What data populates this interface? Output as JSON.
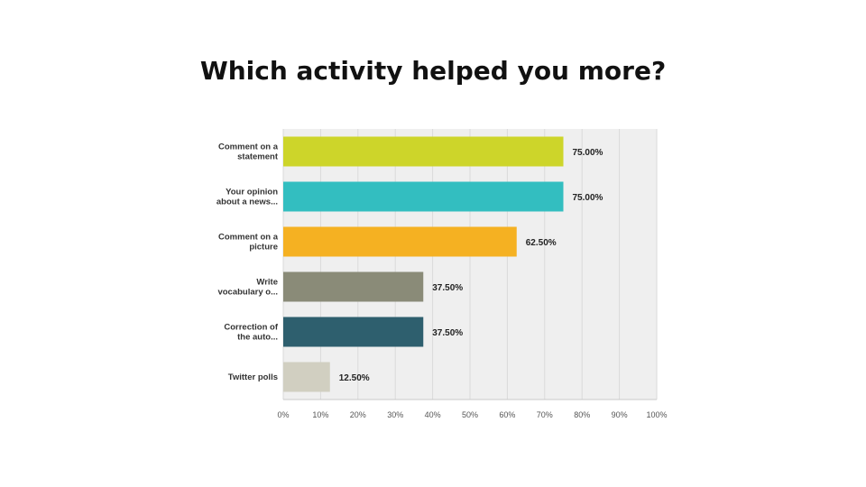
{
  "slide": {
    "title": "Which activity helped you more?"
  },
  "chart_data": {
    "type": "bar",
    "orientation": "horizontal",
    "title": "Which activity helped you more?",
    "categories": [
      [
        "Comment on a",
        "statement"
      ],
      [
        "Your opinion",
        "about a news..."
      ],
      [
        "Comment on a",
        "picture"
      ],
      [
        "Write",
        "vocabulary o..."
      ],
      [
        "Correction of",
        "the auto..."
      ],
      [
        "Twitter polls"
      ]
    ],
    "values": [
      75.0,
      75.0,
      62.5,
      37.5,
      37.5,
      12.5
    ],
    "value_labels": [
      "75.00%",
      "75.00%",
      "62.50%",
      "37.50%",
      "37.50%",
      "12.50%"
    ],
    "colors": [
      "#cdd52a",
      "#33bec0",
      "#f5b122",
      "#8a8b78",
      "#2e5f6e",
      "#d1cfc1"
    ],
    "xlim": [
      0,
      100
    ],
    "x_ticks": [
      "0%",
      "10%",
      "20%",
      "30%",
      "40%",
      "50%",
      "60%",
      "70%",
      "80%",
      "90%",
      "100%"
    ],
    "grid": true,
    "xlabel": "",
    "ylabel": ""
  }
}
